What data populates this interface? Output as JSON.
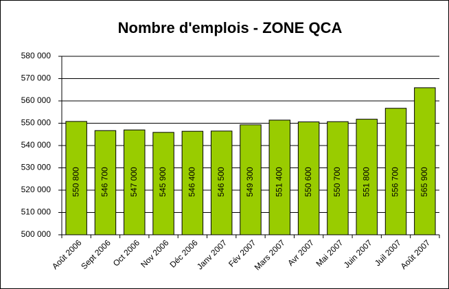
{
  "chart_data": {
    "type": "bar",
    "title": "Nombre d'emplois - ZONE QCA",
    "categories": [
      "Août 2006",
      "Sept 2006",
      "Oct 2006",
      "Nov 2006",
      "Déc 2006",
      "Janv 2007",
      "Fév 2007",
      "Mars 2007",
      "Avr 2007",
      "Mai 2007",
      "Juin 2007",
      "Juil 2007",
      "Août 2007"
    ],
    "values": [
      550800,
      546700,
      547000,
      545900,
      546400,
      546500,
      549300,
      551400,
      550600,
      550700,
      551800,
      556700,
      565900
    ],
    "value_labels": [
      "550 800",
      "546 700",
      "547 000",
      "545 900",
      "546 400",
      "546 500",
      "549 300",
      "551 400",
      "550 600",
      "550 700",
      "551 800",
      "556 700",
      "565 900"
    ],
    "color": "#99cc00",
    "ylim": [
      500000,
      580000
    ],
    "yticks": [
      {
        "value": 500000,
        "label": "500 000"
      },
      {
        "value": 510000,
        "label": "510 000"
      },
      {
        "value": 520000,
        "label": "520 000"
      },
      {
        "value": 530000,
        "label": "530 000"
      },
      {
        "value": 540000,
        "label": "540 000"
      },
      {
        "value": 550000,
        "label": "550 000"
      },
      {
        "value": 560000,
        "label": "560 000"
      },
      {
        "value": 570000,
        "label": "570 000"
      },
      {
        "value": 580000,
        "label": "580 000"
      }
    ],
    "grid": true
  }
}
